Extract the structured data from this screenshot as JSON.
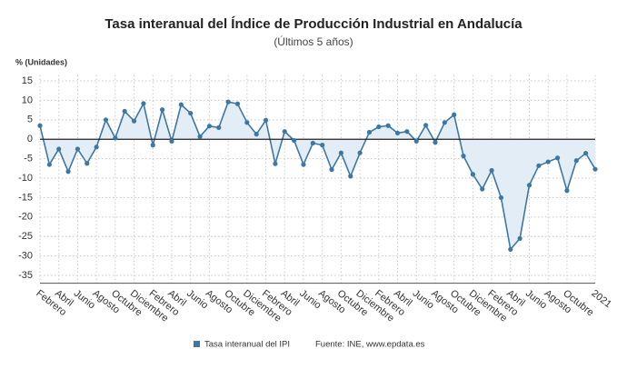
{
  "chart_data": {
    "type": "line",
    "title": "Tasa interanual del Índice de Producción Industrial en Andalucía",
    "subtitle": "(Últimos 5 años)",
    "y_label": "% (Unidades)",
    "source": "Fuente: INE, www.epdata.es",
    "categories": [
      "Febrero",
      null,
      "Abril",
      null,
      "Junio",
      null,
      "Agosto",
      null,
      "Octubre",
      null,
      "Diciembre",
      null,
      "Febrero",
      null,
      "Abril",
      null,
      "Junio",
      null,
      "Agosto",
      null,
      "Octubre",
      null,
      "Diciembre",
      null,
      "Febrero",
      null,
      "Abril",
      null,
      "Junio",
      null,
      "Agosto",
      null,
      "Octubre",
      null,
      "Diciembre",
      null,
      "Febrero",
      null,
      "Abril",
      null,
      "Junio",
      null,
      "Agosto",
      null,
      "Octubre",
      null,
      "Diciembre",
      null,
      "Febrero",
      null,
      "Abril",
      null,
      "Junio",
      null,
      "Agosto",
      null,
      "Octubre",
      null,
      null,
      "2021"
    ],
    "series": [
      {
        "name": "Tasa interanual del IPI",
        "color": "#3d77a3",
        "values": [
          3.5,
          -6.5,
          -2.5,
          -8.3,
          -2.5,
          -6.2,
          -2,
          5,
          0.3,
          7.2,
          4.7,
          9.2,
          -1.5,
          7.6,
          -0.5,
          8.9,
          6.7,
          0.7,
          3.4,
          3,
          9.6,
          9.1,
          4.3,
          1.3,
          4.9,
          -6.3,
          2,
          -0.3,
          -6.5,
          -1,
          -1.5,
          -7.8,
          -3.5,
          -9.5,
          -3.5,
          1.8,
          3.2,
          3.5,
          1.6,
          2,
          -0.5,
          3.6,
          -0.8,
          4.3,
          6.3,
          -4.3,
          -9,
          -12.8,
          -8,
          -15,
          -28.3,
          -25.5,
          -11.8,
          -6.8,
          -5.8,
          -4.8,
          -13.2,
          -5.5,
          -3.6,
          -7.7
        ]
      }
    ],
    "ylim": [
      -37,
      16.5
    ],
    "yticks": [
      15,
      10,
      5,
      0,
      -5,
      -10,
      -15,
      -20,
      -25,
      -30,
      -35
    ],
    "grid": true,
    "area_color": "#e3edf5"
  }
}
